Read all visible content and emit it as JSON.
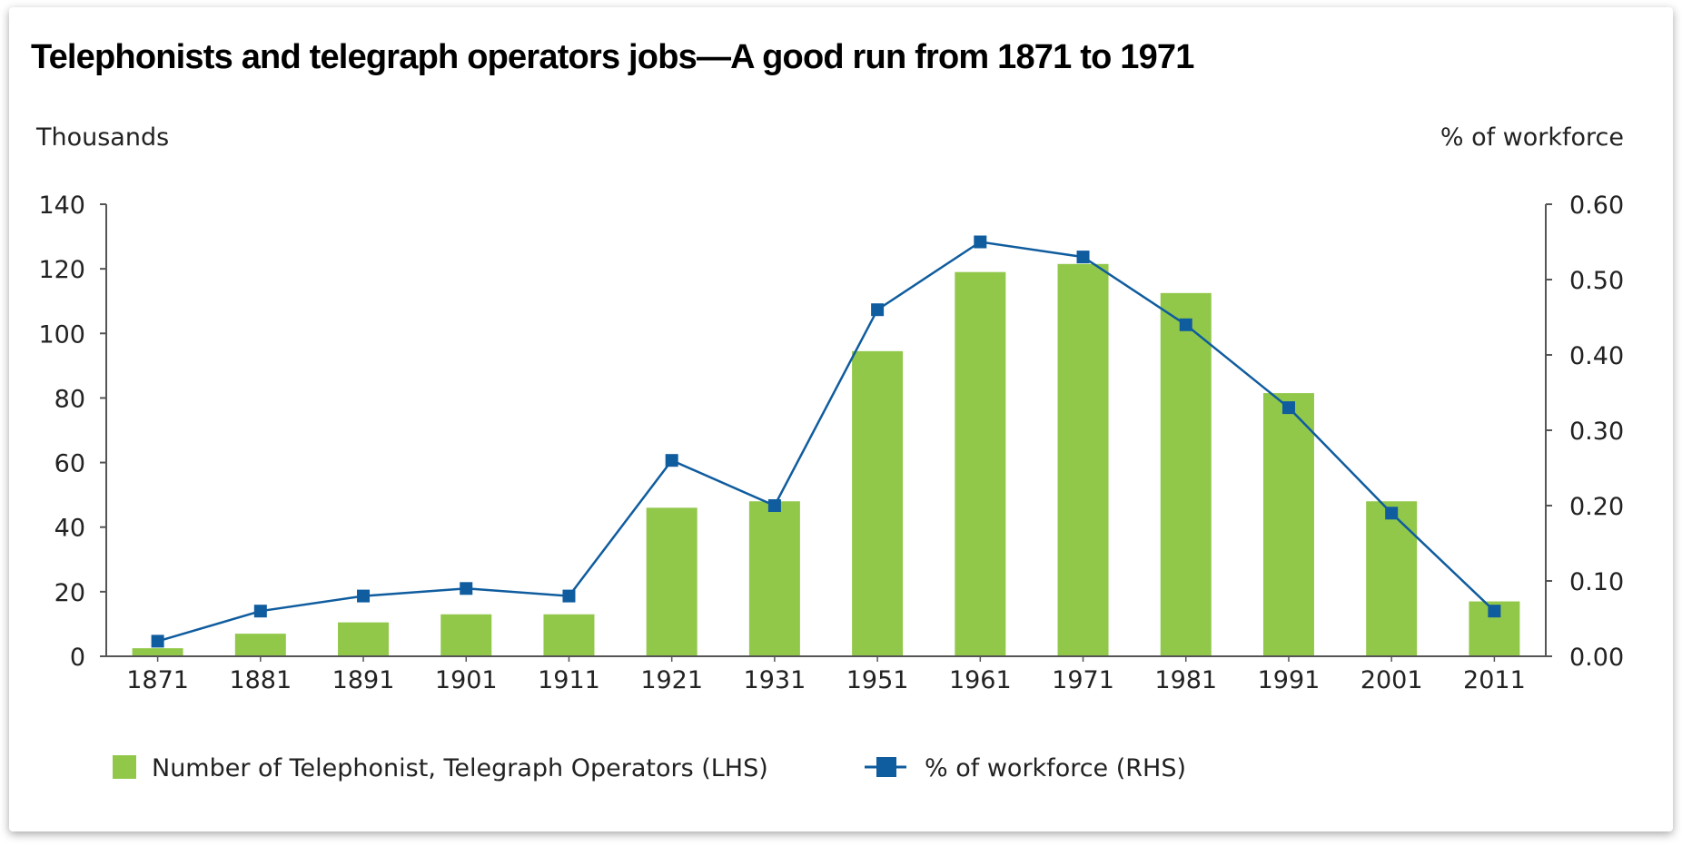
{
  "title": "Telephonists and telegraph operators jobs—A good run from 1871 to 1971",
  "chart_data": {
    "type": "bar",
    "title": "Telephonists and telegraph operators jobs—A good run from 1871 to 1971",
    "categories": [
      "1871",
      "1881",
      "1891",
      "1901",
      "1911",
      "1921",
      "1931",
      "1951",
      "1961",
      "1971",
      "1981",
      "1991",
      "2001",
      "2011"
    ],
    "y_left": {
      "label": "Thousands",
      "range": [
        0,
        140
      ],
      "ticks": [
        "0",
        "20",
        "40",
        "60",
        "80",
        "100",
        "120",
        "140"
      ]
    },
    "y_right": {
      "label": "% of workforce",
      "range": [
        0,
        0.6
      ],
      "ticks": [
        "0.00",
        "0.10",
        "0.20",
        "0.30",
        "0.40",
        "0.50",
        "0.60"
      ]
    },
    "series": [
      {
        "name": "Number of Telephonist, Telegraph Operators (LHS)",
        "type": "bar",
        "axis": "left",
        "color": "#92C84A",
        "values": [
          2.5,
          7,
          10.5,
          13,
          13,
          46,
          48,
          94.5,
          119,
          121.5,
          112.5,
          81.5,
          48,
          17
        ]
      },
      {
        "name": "% of workforce (RHS)",
        "type": "line",
        "axis": "right",
        "color": "#0F5C9E",
        "marker": "square",
        "values": [
          0.02,
          0.06,
          0.08,
          0.09,
          0.08,
          0.26,
          0.2,
          0.46,
          0.55,
          0.53,
          0.44,
          0.33,
          0.19,
          0.06
        ]
      }
    ],
    "legend": "bottom",
    "grid": false
  }
}
